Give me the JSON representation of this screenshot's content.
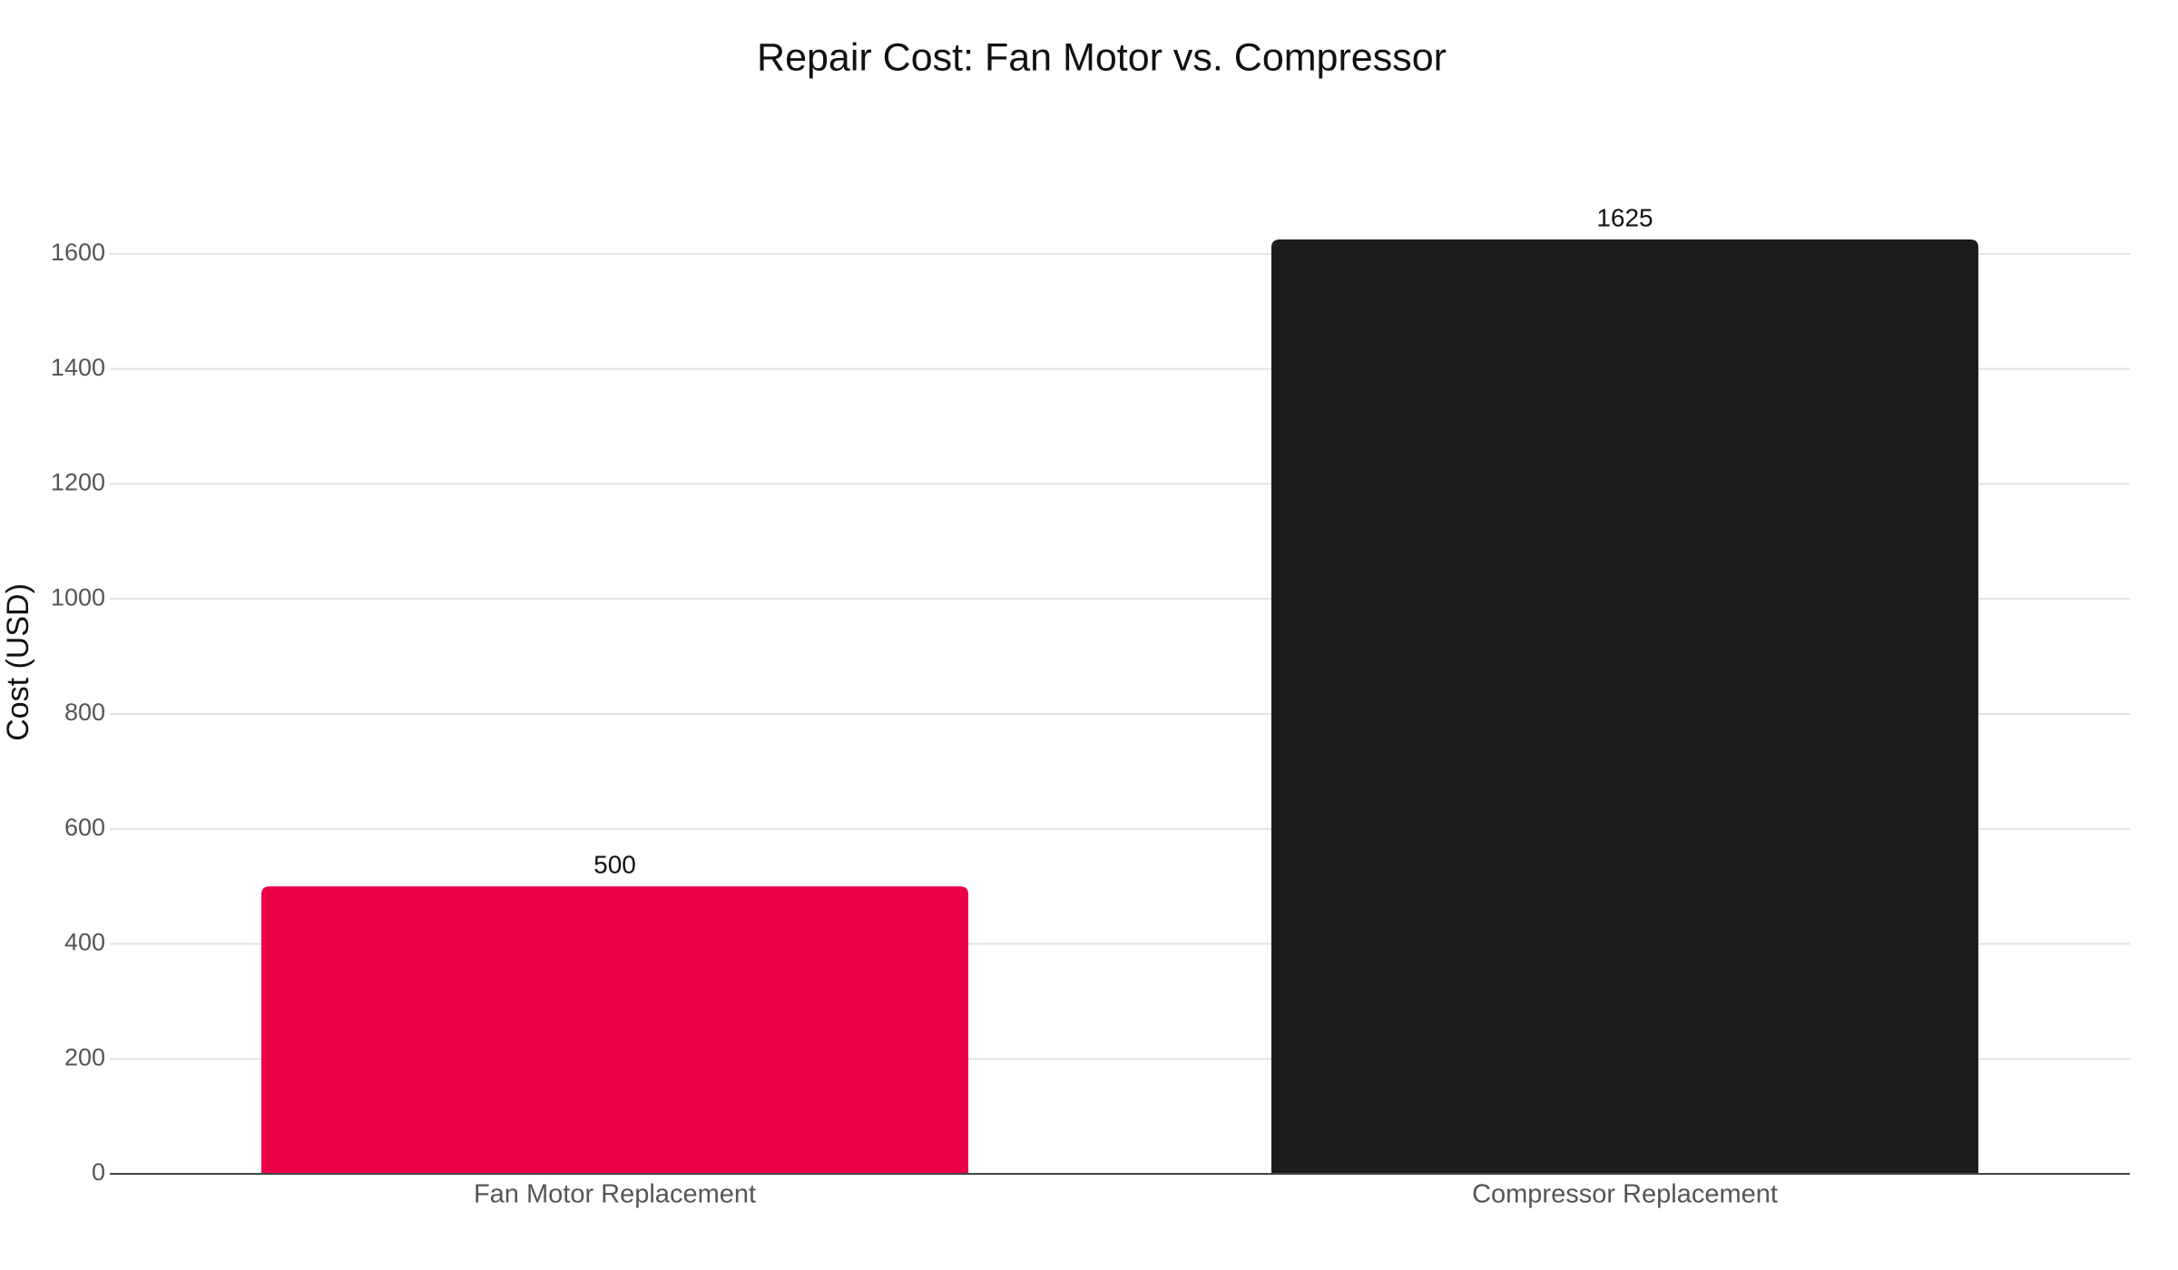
{
  "chart_data": {
    "type": "bar",
    "title": "Repair Cost: Fan Motor vs. Compressor",
    "y_label": "Cost (USD)",
    "categories": [
      "Fan Motor Replacement",
      "Compressor Replacement"
    ],
    "values": [
      500,
      1625
    ],
    "colors": [
      "#ec0047",
      "#1c1c1c"
    ],
    "ylim": [
      0,
      1700
    ],
    "yticks": [
      0,
      200,
      400,
      600,
      800,
      1000,
      1200,
      1400,
      1600
    ],
    "grid": true
  }
}
